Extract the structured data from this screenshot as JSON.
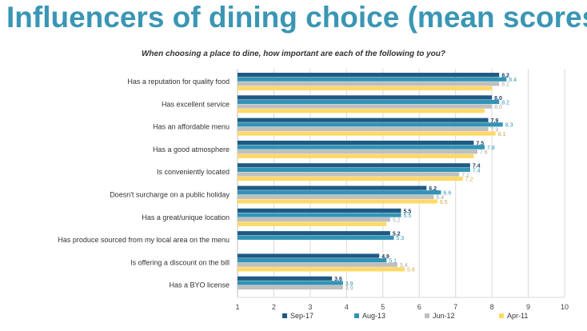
{
  "chart_data": {
    "type": "bar",
    "orientation": "horizontal",
    "title": "Influencers of dining choice (mean scores)",
    "subtitle": "When choosing a place to dine, how important are each of the following to you?",
    "categories": [
      "Has a reputation for quality food",
      "Has excellent service",
      "Has an affordable menu",
      "Has a good atmosphere",
      "Is conveniently located",
      "Doesn't surcharge on a public holiday",
      "Has a great/unique location",
      "Has produce sourced from my local area on the menu",
      "Is offering a discount on the bill",
      "Has a BYO license"
    ],
    "series": [
      {
        "name": "Sep-17",
        "color": "#1f5a84",
        "values": [
          8.2,
          8.0,
          7.9,
          7.5,
          7.4,
          6.2,
          5.5,
          5.2,
          4.9,
          3.6
        ],
        "labels": [
          "8.2",
          "8.0",
          "7.9",
          "7.5",
          "7.4",
          "6.2",
          "5.5",
          "5.2",
          "4.9",
          "3.6"
        ]
      },
      {
        "name": "Aug-13",
        "color": "#3194b4",
        "values": [
          8.4,
          8.2,
          8.3,
          7.8,
          7.4,
          6.6,
          5.5,
          5.3,
          5.1,
          3.9
        ],
        "labels": [
          "8.4",
          "8.2",
          "8.3",
          "7.8",
          "7.4",
          "6.6",
          "5.5",
          "5.3",
          "5.1",
          "3.9"
        ]
      },
      {
        "name": "Jun-12",
        "color": "#bfbfbf",
        "values": [
          8.2,
          8.0,
          7.9,
          7.6,
          7.1,
          6.4,
          5.2,
          null,
          5.4,
          3.9
        ],
        "labels": [
          "8.2",
          "8.0",
          "7.9",
          "7.6",
          "7.1",
          "6.4",
          "5.2",
          null,
          "5.4",
          "3.9"
        ]
      },
      {
        "name": "Apr-11",
        "color": "#ffd966",
        "values": [
          8.0,
          7.8,
          8.1,
          7.5,
          7.2,
          6.5,
          5.1,
          null,
          5.6,
          null
        ],
        "labels": [
          "",
          "",
          "8.1",
          "",
          "7.2",
          "6.5",
          "",
          null,
          "5.6",
          null
        ]
      }
    ],
    "x_ticks": [
      "1",
      "2",
      "3",
      "4",
      "5",
      "6",
      "7",
      "8",
      "9",
      "10"
    ],
    "xlim": [
      1,
      10
    ],
    "grid": true,
    "legend_position": "bottom"
  }
}
